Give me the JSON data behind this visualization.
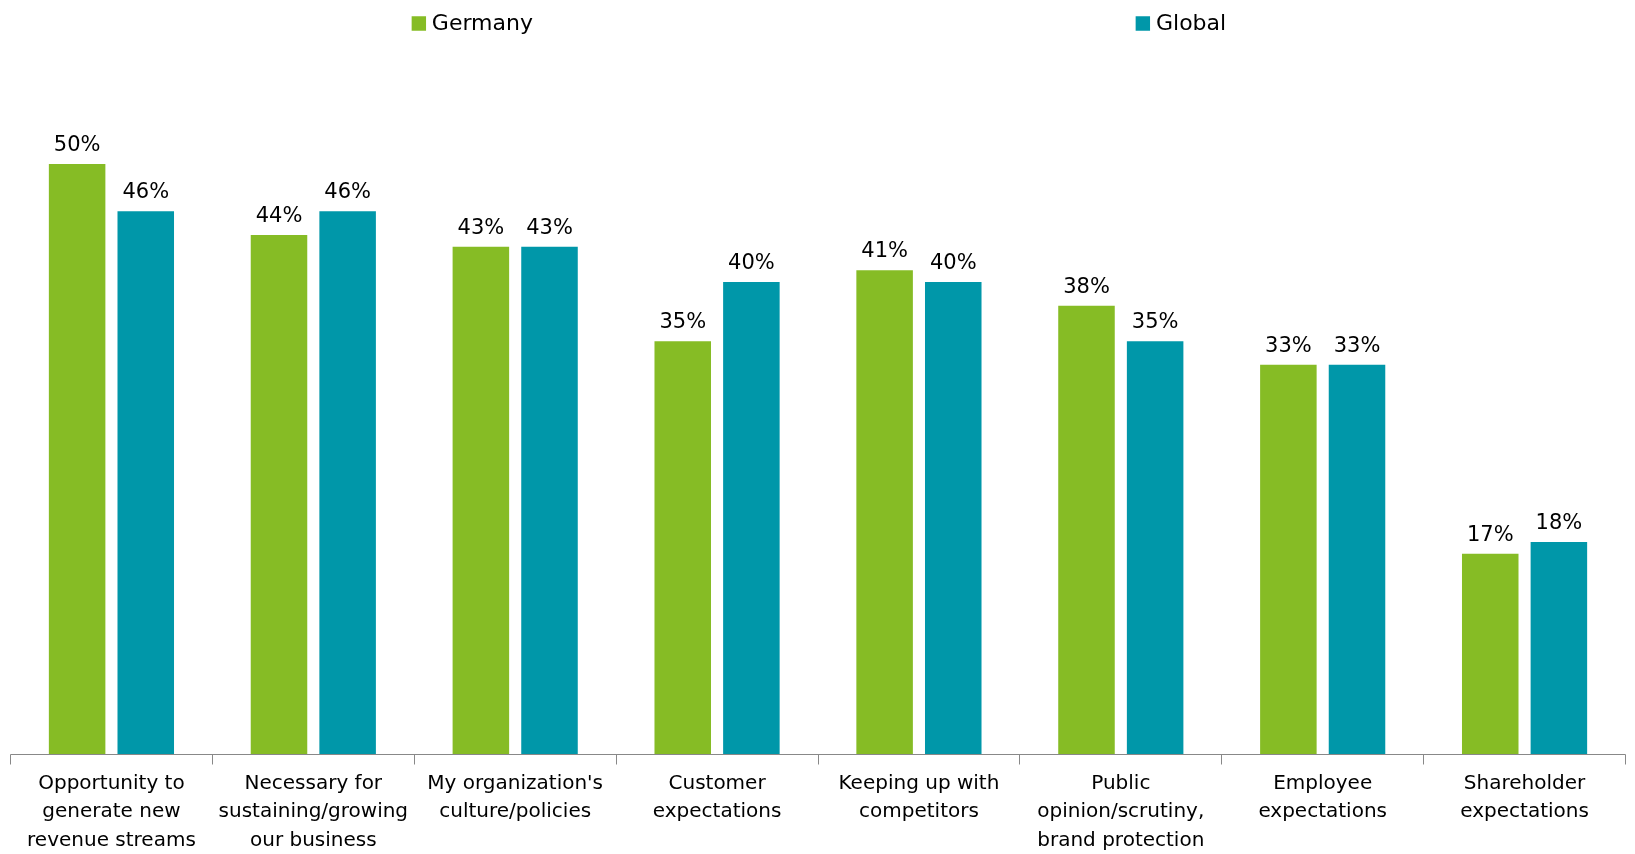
{
  "chart_data": {
    "type": "bar",
    "categories": [
      "Opportunity to generate new revenue streams",
      "Necessary for sustaining/growing our business",
      "My organization's culture/policies",
      "Customer expectations",
      "Keeping up with competitors",
      "Public opinion/scrutiny, brand protection",
      "Employee expectations",
      "Shareholder expectations"
    ],
    "series": [
      {
        "name": "Germany",
        "color": "#86bc25",
        "values": [
          50,
          44,
          43,
          35,
          41,
          38,
          33,
          17
        ],
        "value_labels": [
          "50%",
          "44%",
          "43%",
          "35%",
          "41%",
          "38%",
          "33%",
          "17%"
        ]
      },
      {
        "name": "Global",
        "color": "#0097a9",
        "values": [
          46,
          46,
          43,
          40,
          40,
          35,
          33,
          18
        ],
        "value_labels": [
          "46%",
          "46%",
          "43%",
          "40%",
          "40%",
          "35%",
          "33%",
          "18%"
        ]
      }
    ],
    "legend": "top",
    "grid": false
  }
}
